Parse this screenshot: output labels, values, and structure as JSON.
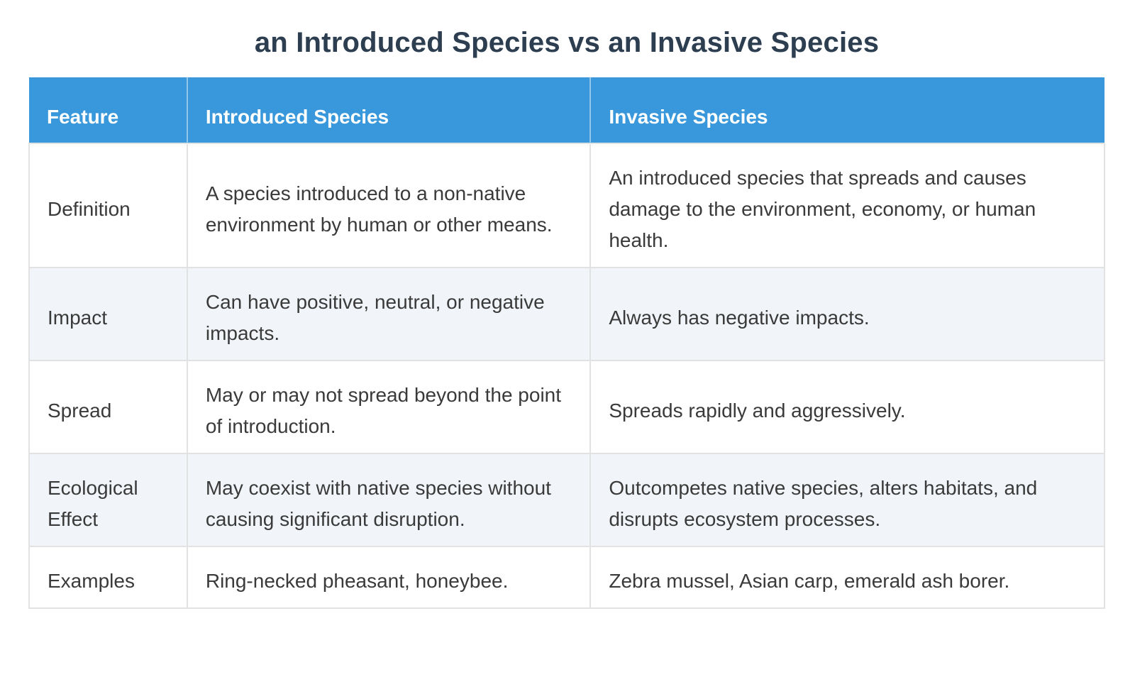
{
  "title": "an Introduced Species vs an Invasive Species",
  "colors": {
    "header_bg": "#3998db",
    "header_text": "#ffffff",
    "title_text": "#2c3e50",
    "body_text": "#3a3a3a",
    "stripe_bg": "#f1f4f9",
    "border": "#e2e2e2"
  },
  "table": {
    "columns": {
      "feature": "Feature",
      "introduced": "Introduced Species",
      "invasive": "Invasive Species"
    },
    "rows": [
      {
        "feature": "Definition",
        "introduced": "A species introduced to a non-native environment by human or other means.",
        "invasive": "An introduced species that spreads and causes damage to the environment, economy, or human health."
      },
      {
        "feature": "Impact",
        "introduced": "Can have positive, neutral, or negative impacts.",
        "invasive": "Always has negative impacts."
      },
      {
        "feature": "Spread",
        "introduced": "May or may not spread beyond the point of introduction.",
        "invasive": "Spreads rapidly and aggressively."
      },
      {
        "feature": "Ecological Effect",
        "introduced": "May coexist with native species without causing significant disruption.",
        "invasive": "Outcompetes native species, alters habitats, and disrupts ecosystem processes."
      },
      {
        "feature": "Examples",
        "introduced": "Ring-necked pheasant, honeybee.",
        "invasive": "Zebra mussel, Asian carp, emerald ash borer."
      }
    ]
  }
}
